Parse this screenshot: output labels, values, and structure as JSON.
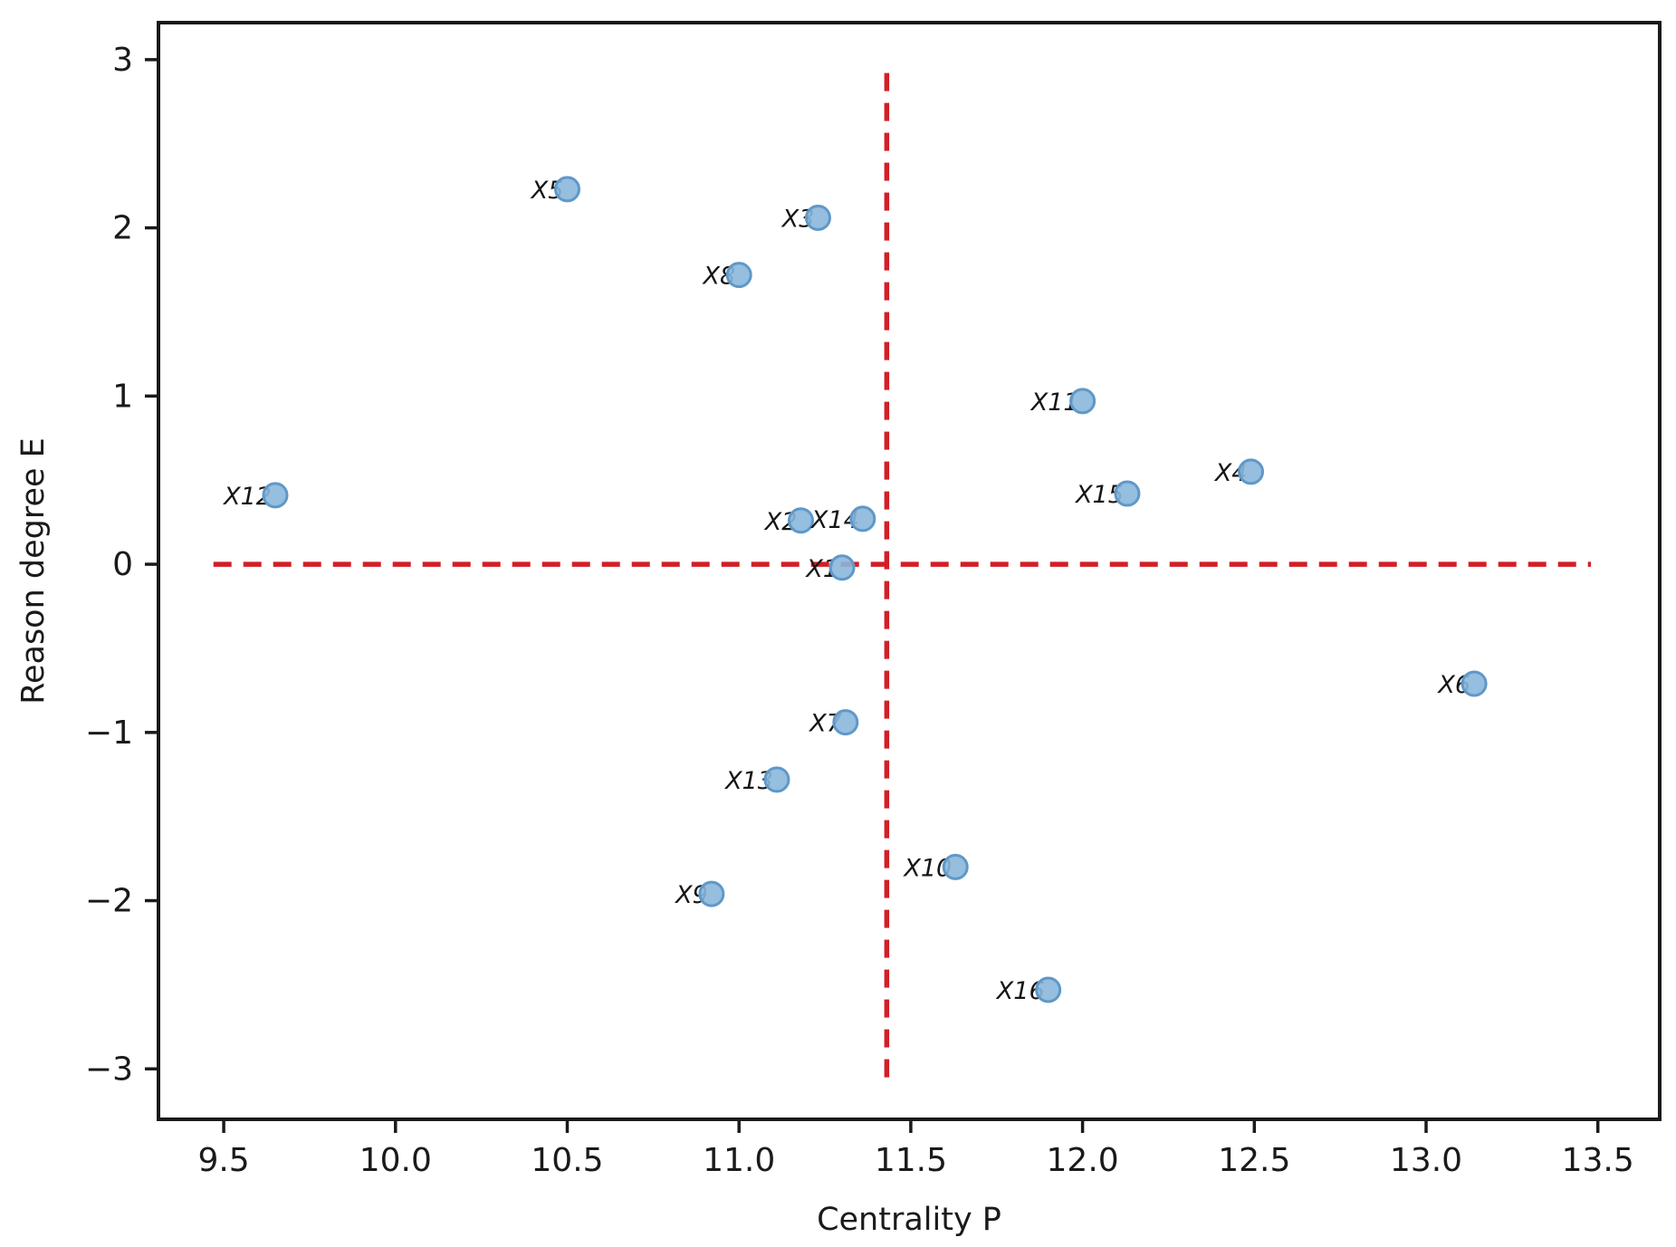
{
  "chart_data": {
    "type": "scatter",
    "title": "",
    "xlabel": "Centrality P",
    "ylabel": "Reason degree E",
    "xlim": [
      9.31,
      13.68
    ],
    "ylim": [
      -3.3,
      3.22
    ],
    "grid": false,
    "legend": "none",
    "x_ticks": [
      {
        "value": 9.5,
        "label": "9.5"
      },
      {
        "value": 10.0,
        "label": "10.0"
      },
      {
        "value": 10.5,
        "label": "10.5"
      },
      {
        "value": 11.0,
        "label": "11.0"
      },
      {
        "value": 11.5,
        "label": "11.5"
      },
      {
        "value": 12.0,
        "label": "12.0"
      },
      {
        "value": 12.5,
        "label": "12.5"
      },
      {
        "value": 13.0,
        "label": "13.0"
      },
      {
        "value": 13.5,
        "label": "13.5"
      }
    ],
    "y_ticks": [
      {
        "value": -3,
        "label": "−3"
      },
      {
        "value": -2,
        "label": "−2"
      },
      {
        "value": -1,
        "label": "−1"
      },
      {
        "value": 0,
        "label": "0"
      },
      {
        "value": 1,
        "label": "1"
      },
      {
        "value": 2,
        "label": "2"
      },
      {
        "value": 3,
        "label": "3"
      }
    ],
    "points": [
      {
        "label": "X1",
        "x": 11.3,
        "y": -0.02
      },
      {
        "label": "X2",
        "x": 11.18,
        "y": 0.26
      },
      {
        "label": "X3",
        "x": 11.23,
        "y": 2.06
      },
      {
        "label": "X4",
        "x": 12.49,
        "y": 0.55
      },
      {
        "label": "X5",
        "x": 10.5,
        "y": 2.23
      },
      {
        "label": "X6",
        "x": 13.14,
        "y": -0.71
      },
      {
        "label": "X7",
        "x": 11.31,
        "y": -0.94
      },
      {
        "label": "X8",
        "x": 11.0,
        "y": 1.72
      },
      {
        "label": "X9",
        "x": 10.92,
        "y": -1.96
      },
      {
        "label": "X10",
        "x": 11.63,
        "y": -1.8
      },
      {
        "label": "X11",
        "x": 12.0,
        "y": 0.97
      },
      {
        "label": "X12",
        "x": 9.65,
        "y": 0.41
      },
      {
        "label": "X13",
        "x": 11.11,
        "y": -1.28
      },
      {
        "label": "X14",
        "x": 11.36,
        "y": 0.27
      },
      {
        "label": "X15",
        "x": 12.13,
        "y": 0.42
      },
      {
        "label": "X16",
        "x": 11.9,
        "y": -2.53
      }
    ],
    "reference_lines": {
      "vertical": {
        "x": 11.43,
        "y_from": -3.05,
        "y_to": 2.96,
        "color": "#d21f26",
        "style": "dashed"
      },
      "horizontal": {
        "y": 0.0,
        "x_from": 9.47,
        "x_to": 13.48,
        "color": "#d21f26",
        "style": "dashed"
      }
    },
    "marker": {
      "fill": "#8ab7db",
      "stroke": "#5f98c8",
      "radius": 13
    },
    "colors": {
      "axis": "#1a1a1a",
      "background": "#ffffff",
      "reference": "#d21f26",
      "marker_fill": "#8ab7db",
      "marker_edge": "#5f98c8"
    }
  }
}
